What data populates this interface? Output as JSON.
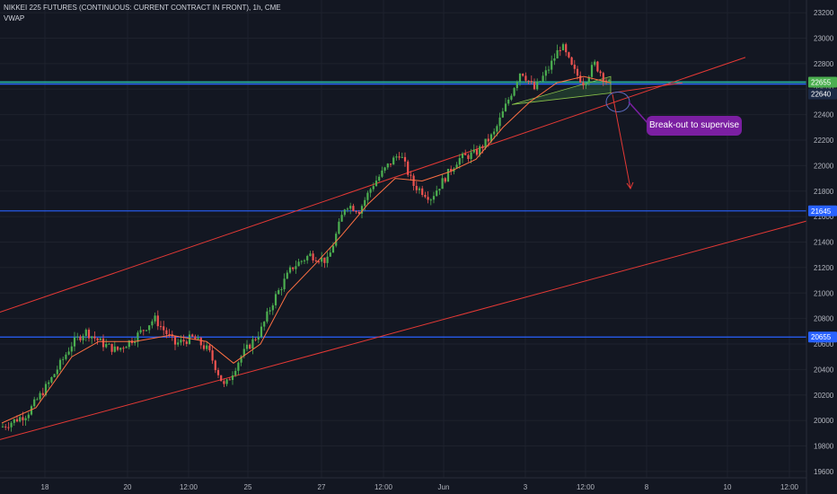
{
  "header": {
    "title": "NIKKEI 225 FUTURES (CONTINUOUS: CURRENT CONTRACT IN FRONT), 1h, CME",
    "indicator": "VWAP"
  },
  "colors": {
    "background": "#131722",
    "grid": "#1e222d",
    "up": "#26a69a",
    "up_bright": "#4caf50",
    "down": "#ef5350",
    "vwap": "#ff7043",
    "trend": "#e53935",
    "level": "#2962ff",
    "level_teal": "#26a69a",
    "callout": "#7b1fa2",
    "price_green": "#4caf50"
  },
  "chart_data": {
    "type": "candlestick",
    "xlim": [
      0,
      932
    ],
    "ylim": [
      19550,
      23300
    ],
    "grid": true,
    "y_ticks": [
      19600,
      19800,
      20000,
      20200,
      20400,
      20600,
      20800,
      21000,
      21200,
      21400,
      21600,
      21800,
      22000,
      22200,
      22400,
      22600,
      22800,
      23000,
      23200
    ],
    "x_ticks": [
      {
        "label": "18",
        "x": 50
      },
      {
        "label": "20",
        "x": 142
      },
      {
        "label": "12:00",
        "x": 210
      },
      {
        "label": "25",
        "x": 276
      },
      {
        "label": "27",
        "x": 358
      },
      {
        "label": "12:00",
        "x": 427
      },
      {
        "label": "Jun",
        "x": 494
      },
      {
        "label": "3",
        "x": 585
      },
      {
        "label": "12:00",
        "x": 652
      },
      {
        "label": "8",
        "x": 720
      },
      {
        "label": "10",
        "x": 810
      },
      {
        "label": "12:00",
        "x": 879
      }
    ],
    "price_path": [
      [
        2,
        19950
      ],
      [
        30,
        20050
      ],
      [
        55,
        20300
      ],
      [
        80,
        20600
      ],
      [
        95,
        20700
      ],
      [
        115,
        20600
      ],
      [
        130,
        20550
      ],
      [
        150,
        20650
      ],
      [
        172,
        20800
      ],
      [
        195,
        20600
      ],
      [
        215,
        20650
      ],
      [
        232,
        20550
      ],
      [
        250,
        20260
      ],
      [
        268,
        20500
      ],
      [
        290,
        20700
      ],
      [
        305,
        20950
      ],
      [
        325,
        21200
      ],
      [
        345,
        21300
      ],
      [
        365,
        21250
      ],
      [
        385,
        21700
      ],
      [
        400,
        21650
      ],
      [
        415,
        21850
      ],
      [
        432,
        22000
      ],
      [
        445,
        22100
      ],
      [
        460,
        21850
      ],
      [
        480,
        21750
      ],
      [
        495,
        21900
      ],
      [
        510,
        22050
      ],
      [
        530,
        22100
      ],
      [
        550,
        22250
      ],
      [
        565,
        22500
      ],
      [
        580,
        22750
      ],
      [
        595,
        22600
      ],
      [
        610,
        22750
      ],
      [
        625,
        22950
      ],
      [
        638,
        22750
      ],
      [
        650,
        22650
      ],
      [
        662,
        22800
      ],
      [
        672,
        22700
      ],
      [
        680,
        22630
      ]
    ],
    "vwap": [
      [
        2,
        19980
      ],
      [
        40,
        20100
      ],
      [
        80,
        20500
      ],
      [
        110,
        20620
      ],
      [
        150,
        20620
      ],
      [
        190,
        20670
      ],
      [
        230,
        20620
      ],
      [
        260,
        20450
      ],
      [
        290,
        20600
      ],
      [
        320,
        21000
      ],
      [
        350,
        21220
      ],
      [
        380,
        21450
      ],
      [
        410,
        21700
      ],
      [
        440,
        21900
      ],
      [
        470,
        21880
      ],
      [
        500,
        21950
      ],
      [
        530,
        22050
      ],
      [
        560,
        22300
      ],
      [
        590,
        22500
      ],
      [
        620,
        22650
      ],
      [
        650,
        22700
      ],
      [
        680,
        22650
      ]
    ],
    "price_labels": [
      {
        "label": "22655",
        "value": 22655
      },
      {
        "label": "22640",
        "value": 22640
      },
      {
        "label": "21645",
        "value": 21645
      },
      {
        "label": "20655",
        "value": 20655
      }
    ],
    "horizontal_levels": [
      {
        "value": 22655,
        "color": "teal"
      },
      {
        "value": 22640,
        "color": "blue"
      },
      {
        "value": 21645,
        "color": "blue"
      },
      {
        "value": 20655,
        "color": "blue"
      }
    ],
    "trend_lines": [
      {
        "from": [
          0,
          20850
        ],
        "to": [
          830,
          22850
        ]
      },
      {
        "from": [
          0,
          19850
        ],
        "to": [
          932,
          21630
        ]
      },
      {
        "from": [
          680,
          22570
        ],
        "to": [
          760,
          22650
        ]
      }
    ],
    "pattern_triangle": [
      [
        570,
        22480
      ],
      [
        680,
        22570
      ],
      [
        680,
        22700
      ]
    ],
    "arrow": {
      "from": [
        682,
        22560
      ],
      "to": [
        702,
        21820
      ]
    },
    "annotation": {
      "text": "Break-out to supervise",
      "x": 686,
      "y": 22540
    }
  }
}
